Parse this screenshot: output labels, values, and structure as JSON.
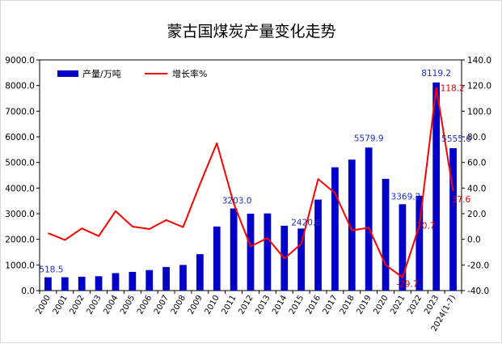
{
  "chart_data": {
    "type": "bar+line",
    "title": "蒙古国煤炭产量变化走势",
    "categories": [
      "2000",
      "2001",
      "2002",
      "2003",
      "2004",
      "2005",
      "2006",
      "2007",
      "2008",
      "2009",
      "2010",
      "2011",
      "2012",
      "2013",
      "2014",
      "2015",
      "2016",
      "2017",
      "2018",
      "2019",
      "2020",
      "2021",
      "2022",
      "2023",
      "2024(1-7)"
    ],
    "series": [
      {
        "name": "产量/万吨",
        "type": "bar",
        "axis": "left",
        "color": "#0000c8",
        "values": [
          518.5,
          520,
          540,
          560,
          680,
          730,
          800,
          920,
          1000,
          1420,
          2500,
          3203.0,
          3000,
          3010,
          2530,
          2420.6,
          3550,
          4810,
          5110,
          5579.9,
          4360,
          3369.2,
          3700,
          8119.2,
          5555.6
        ]
      },
      {
        "name": "增长率%",
        "type": "line",
        "axis": "right",
        "color": "#ff0000",
        "values": [
          4.8,
          -0.5,
          8.5,
          2.5,
          22.0,
          10.0,
          8.0,
          15.0,
          9.5,
          43.0,
          75.0,
          28.0,
          -5.5,
          1.0,
          -15.0,
          -3.5,
          47.0,
          36.0,
          7.0,
          9.0,
          -20.0,
          -29.7,
          10.7,
          118.2,
          37.6
        ]
      }
    ],
    "y_left": {
      "min": 0,
      "max": 9000,
      "step": 1000,
      "tick_labels": [
        "0.0",
        "1000.0",
        "2000.0",
        "3000.0",
        "4000.0",
        "5000.0",
        "6000.0",
        "7000.0",
        "8000.0",
        "9000.0"
      ]
    },
    "y_right": {
      "min": -40,
      "max": 140,
      "step": 20,
      "tick_labels": [
        "-40.0",
        "-20.0",
        "0.0",
        "20.0",
        "40.0",
        "60.0",
        "80.0",
        "100.0",
        "120.0",
        "140.0"
      ]
    },
    "bar_labels": [
      {
        "index": 0,
        "text": "518.5"
      },
      {
        "index": 11,
        "text": "3203.0"
      },
      {
        "index": 15,
        "text": "2420.6"
      },
      {
        "index": 19,
        "text": "5579.9"
      },
      {
        "index": 21,
        "text": "3369.2"
      },
      {
        "index": 23,
        "text": "8119.2"
      },
      {
        "index": 24,
        "text": "5555.6"
      }
    ],
    "line_labels": [
      {
        "index": 21,
        "text": "-29.7"
      },
      {
        "index": 22,
        "text": "10.7"
      },
      {
        "index": 23,
        "text": "118.2"
      },
      {
        "index": 24,
        "text": "37.6"
      }
    ],
    "legend": {
      "placement": "top-left",
      "bar_name": "产量/万吨",
      "line_name": "增长率%"
    },
    "grid": false
  }
}
